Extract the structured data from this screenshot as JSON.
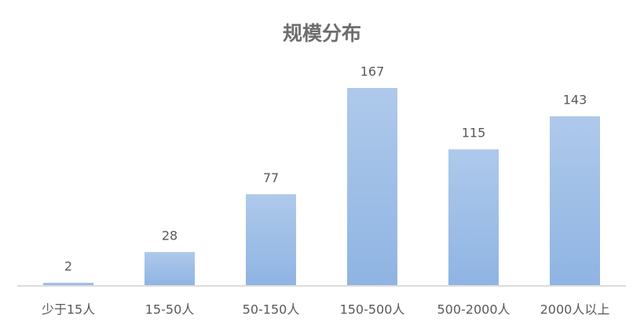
{
  "chart_data": {
    "type": "bar",
    "title": "规模分布",
    "categories": [
      "少于15人",
      "15-50人",
      "50-150人",
      "150-500人",
      "500-2000人",
      "2000人以上"
    ],
    "values": [
      2,
      28,
      77,
      167,
      115,
      143
    ],
    "color": "#8fb4e3"
  }
}
